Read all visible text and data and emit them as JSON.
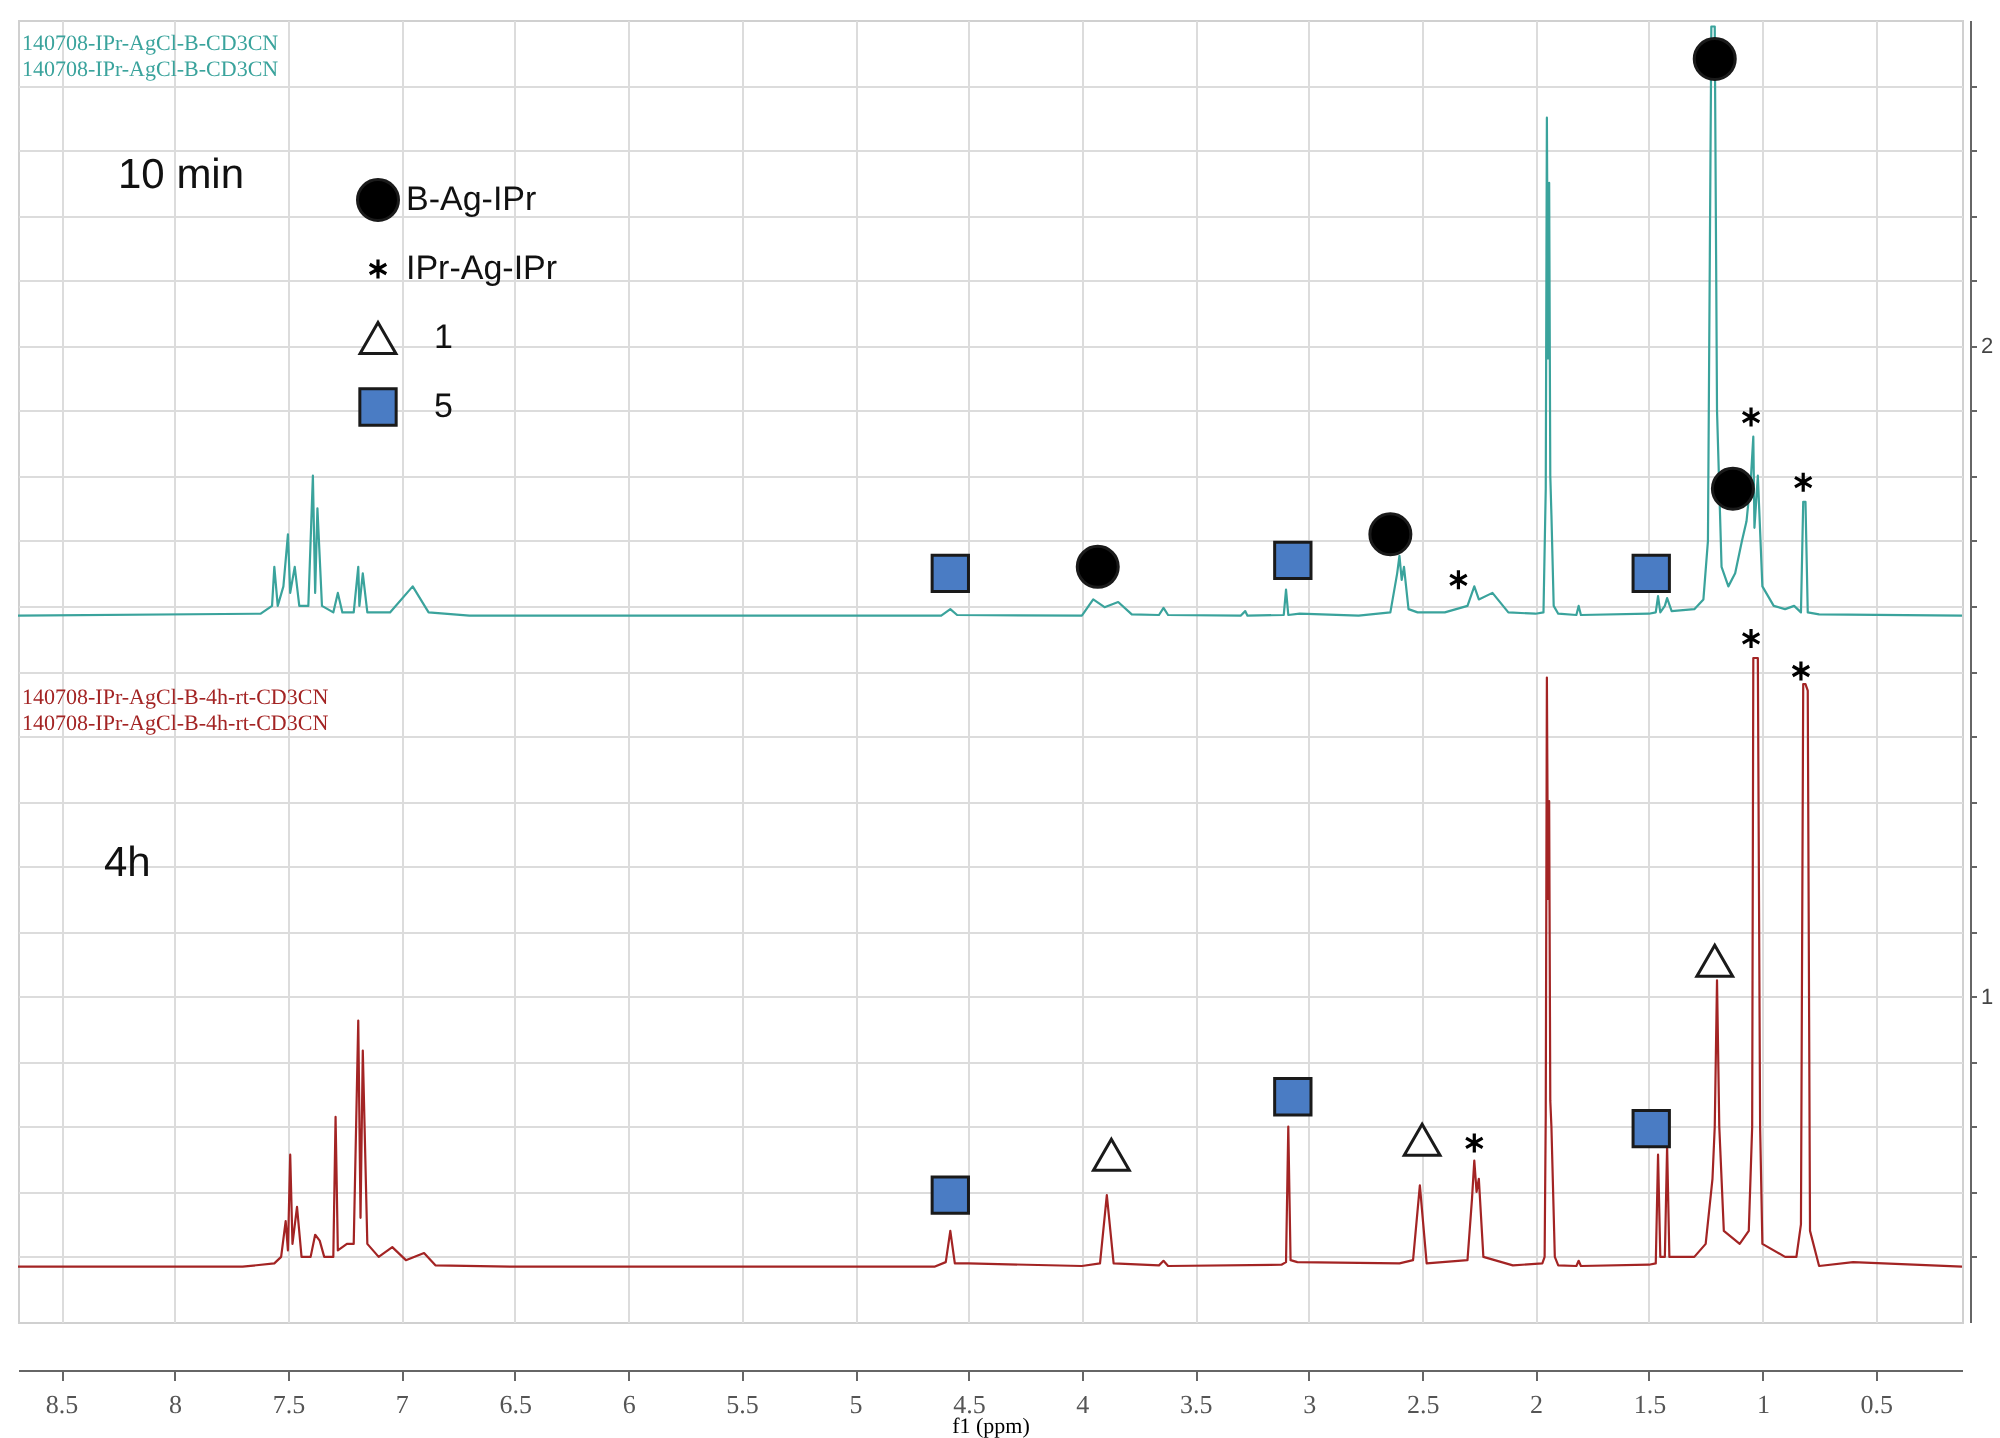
{
  "chart_data": {
    "type": "line",
    "xlabel": "f1 (ppm)",
    "xlim": [
      8.69,
      0.12
    ],
    "xticks": [
      8.5,
      8.0,
      7.5,
      7.0,
      6.5,
      6.0,
      5.5,
      5.0,
      4.5,
      4.0,
      3.5,
      3.0,
      2.5,
      2.0,
      1.5,
      1.0,
      0.5
    ],
    "ylim": [
      0.5,
      2.5
    ],
    "yticks": [
      {
        "value": 0.6,
        "label": null
      },
      {
        "value": 0.7,
        "label": null
      },
      {
        "value": 0.8,
        "label": null
      },
      {
        "value": 0.9,
        "label": null
      },
      1,
      {
        "value": 1.1,
        "label": null
      },
      {
        "value": 1.2,
        "label": null
      },
      {
        "value": 1.3,
        "label": null
      },
      {
        "value": 1.4,
        "label": null
      },
      {
        "value": 1.5,
        "label": null
      },
      {
        "value": 1.6,
        "label": null
      },
      {
        "value": 1.7,
        "label": null
      },
      {
        "value": 1.8,
        "label": null
      },
      {
        "value": 1.9,
        "label": null
      },
      2,
      {
        "value": 2.1,
        "label": null
      },
      {
        "value": 2.2,
        "label": null
      },
      {
        "value": 2.3,
        "label": null
      },
      {
        "value": 2.4,
        "label": null
      }
    ],
    "grid": true,
    "legend": "top left",
    "annotations": [
      "10 min",
      "4h"
    ],
    "series": [
      {
        "name": "140708-IPr-AgCl-B-CD3CN",
        "color": "#3aa39c",
        "x": [
          8.69,
          7.62,
          7.57,
          7.56,
          7.545,
          7.52,
          7.5,
          7.49,
          7.47,
          7.45,
          7.41,
          7.39,
          7.38,
          7.37,
          7.35,
          7.3,
          7.28,
          7.26,
          7.21,
          7.19,
          7.185,
          7.17,
          7.15,
          7.05,
          6.95,
          6.88,
          6.7,
          4.62,
          4.58,
          4.55,
          4.0,
          3.95,
          3.9,
          3.84,
          3.78,
          3.66,
          3.64,
          3.62,
          3.3,
          3.28,
          3.27,
          3.11,
          3.1,
          3.09,
          3.04,
          2.78,
          2.64,
          2.61,
          2.6,
          2.59,
          2.58,
          2.56,
          2.52,
          2.4,
          2.3,
          2.27,
          2.25,
          2.19,
          2.12,
          2.0,
          1.965,
          1.955,
          1.95,
          1.945,
          1.94,
          1.935,
          1.93,
          1.92,
          1.9,
          1.82,
          1.81,
          1.8,
          1.5,
          1.47,
          1.46,
          1.45,
          1.43,
          1.42,
          1.4,
          1.3,
          1.26,
          1.24,
          1.225,
          1.21,
          1.2,
          1.18,
          1.15,
          1.12,
          1.09,
          1.07,
          1.05,
          1.04,
          1.035,
          1.02,
          1.0,
          0.95,
          0.9,
          0.86,
          0.83,
          0.82,
          0.81,
          0.8,
          0.75,
          0.12
        ],
        "values": [
          1.585,
          1.588,
          1.6,
          1.66,
          1.6,
          1.63,
          1.71,
          1.62,
          1.66,
          1.6,
          1.6,
          1.8,
          1.62,
          1.75,
          1.6,
          1.59,
          1.62,
          1.59,
          1.59,
          1.66,
          1.6,
          1.65,
          1.59,
          1.59,
          1.63,
          1.59,
          1.585,
          1.585,
          1.595,
          1.586,
          1.585,
          1.61,
          1.598,
          1.606,
          1.587,
          1.586,
          1.597,
          1.586,
          1.585,
          1.592,
          1.585,
          1.586,
          1.625,
          1.586,
          1.588,
          1.585,
          1.59,
          1.65,
          1.677,
          1.64,
          1.66,
          1.595,
          1.59,
          1.59,
          1.6,
          1.63,
          1.61,
          1.62,
          1.59,
          1.588,
          1.59,
          1.78,
          2.35,
          1.98,
          2.25,
          1.8,
          1.74,
          1.6,
          1.588,
          1.586,
          1.6,
          1.586,
          1.588,
          1.59,
          1.615,
          1.59,
          1.6,
          1.612,
          1.592,
          1.595,
          1.61,
          1.7,
          2.49,
          2.49,
          1.9,
          1.66,
          1.63,
          1.65,
          1.7,
          1.73,
          1.8,
          1.86,
          1.72,
          1.8,
          1.63,
          1.6,
          1.595,
          1.6,
          1.59,
          1.76,
          1.76,
          1.59,
          1.587,
          1.585
        ]
      },
      {
        "name": "140708-IPr-AgCl-B-4h-rt-CD3CN",
        "color": "#a32424",
        "x": [
          8.69,
          7.7,
          7.56,
          7.53,
          7.51,
          7.5,
          7.49,
          7.48,
          7.46,
          7.44,
          7.4,
          7.38,
          7.36,
          7.34,
          7.3,
          7.29,
          7.28,
          7.24,
          7.21,
          7.19,
          7.18,
          7.17,
          7.15,
          7.1,
          7.04,
          6.98,
          6.9,
          6.85,
          6.5,
          4.65,
          4.6,
          4.58,
          4.56,
          4.5,
          4.0,
          3.92,
          3.89,
          3.86,
          3.66,
          3.64,
          3.62,
          3.12,
          3.1,
          3.09,
          3.08,
          3.05,
          2.6,
          2.54,
          2.51,
          2.48,
          2.3,
          2.28,
          2.27,
          2.26,
          2.25,
          2.23,
          2.1,
          1.97,
          1.96,
          1.955,
          1.95,
          1.945,
          1.94,
          1.935,
          1.93,
          1.915,
          1.9,
          1.82,
          1.81,
          1.8,
          1.5,
          1.47,
          1.46,
          1.45,
          1.43,
          1.42,
          1.41,
          1.37,
          1.3,
          1.25,
          1.22,
          1.21,
          1.2,
          1.19,
          1.17,
          1.1,
          1.06,
          1.045,
          1.04,
          1.03,
          1.02,
          1.01,
          1.0,
          0.9,
          0.85,
          0.83,
          0.82,
          0.81,
          0.8,
          0.79,
          0.75,
          0.6,
          0.12
        ],
        "values": [
          0.585,
          0.585,
          0.59,
          0.6,
          0.655,
          0.61,
          0.757,
          0.62,
          0.677,
          0.6,
          0.6,
          0.634,
          0.625,
          0.6,
          0.6,
          0.815,
          0.61,
          0.62,
          0.62,
          0.963,
          0.66,
          0.917,
          0.62,
          0.6,
          0.615,
          0.595,
          0.606,
          0.587,
          0.585,
          0.585,
          0.592,
          0.64,
          0.59,
          0.59,
          0.586,
          0.59,
          0.695,
          0.59,
          0.587,
          0.594,
          0.586,
          0.588,
          0.592,
          0.8,
          0.595,
          0.592,
          0.59,
          0.595,
          0.71,
          0.59,
          0.595,
          0.69,
          0.748,
          0.7,
          0.72,
          0.6,
          0.587,
          0.59,
          0.6,
          0.82,
          1.49,
          1.15,
          1.3,
          0.84,
          0.8,
          0.6,
          0.587,
          0.586,
          0.594,
          0.586,
          0.588,
          0.59,
          0.757,
          0.6,
          0.6,
          0.77,
          0.6,
          0.6,
          0.6,
          0.62,
          0.72,
          0.8,
          1.025,
          0.8,
          0.64,
          0.62,
          0.64,
          0.8,
          1.52,
          1.52,
          1.52,
          0.8,
          0.62,
          0.6,
          0.6,
          0.65,
          1.48,
          1.48,
          1.47,
          0.64,
          0.586,
          0.592,
          0.585
        ]
      },
      {
        "type": "scatter",
        "name": "B-Ag-IPr",
        "color": "#000000",
        "marker": "circle",
        "x": [
          3.93,
          2.64,
          1.21,
          1.13
        ],
        "values": [
          1.66,
          1.71,
          2.44,
          1.78
        ]
      },
      {
        "type": "scatter",
        "name": "IPr-Ag-IPr",
        "color": "#000000",
        "marker": "cross",
        "x": [
          2.34,
          1.05,
          0.82,
          2.27,
          1.05,
          0.83
        ],
        "values": [
          1.64,
          1.89,
          1.79,
          0.775,
          1.55,
          1.5
        ]
      },
      {
        "type": "scatter",
        "name": "1",
        "color": "#ffffff",
        "marker": "triangle",
        "x": [
          3.87,
          2.5,
          1.21
        ],
        "values": [
          0.757,
          0.78,
          1.055
        ]
      },
      {
        "type": "scatter",
        "name": "5",
        "color": "#4a7cc4",
        "marker": "square",
        "x": [
          4.58,
          3.07,
          1.49,
          4.58,
          3.07,
          1.49
        ],
        "values": [
          1.65,
          1.67,
          1.65,
          0.695,
          0.846,
          0.797
        ]
      }
    ]
  }
}
